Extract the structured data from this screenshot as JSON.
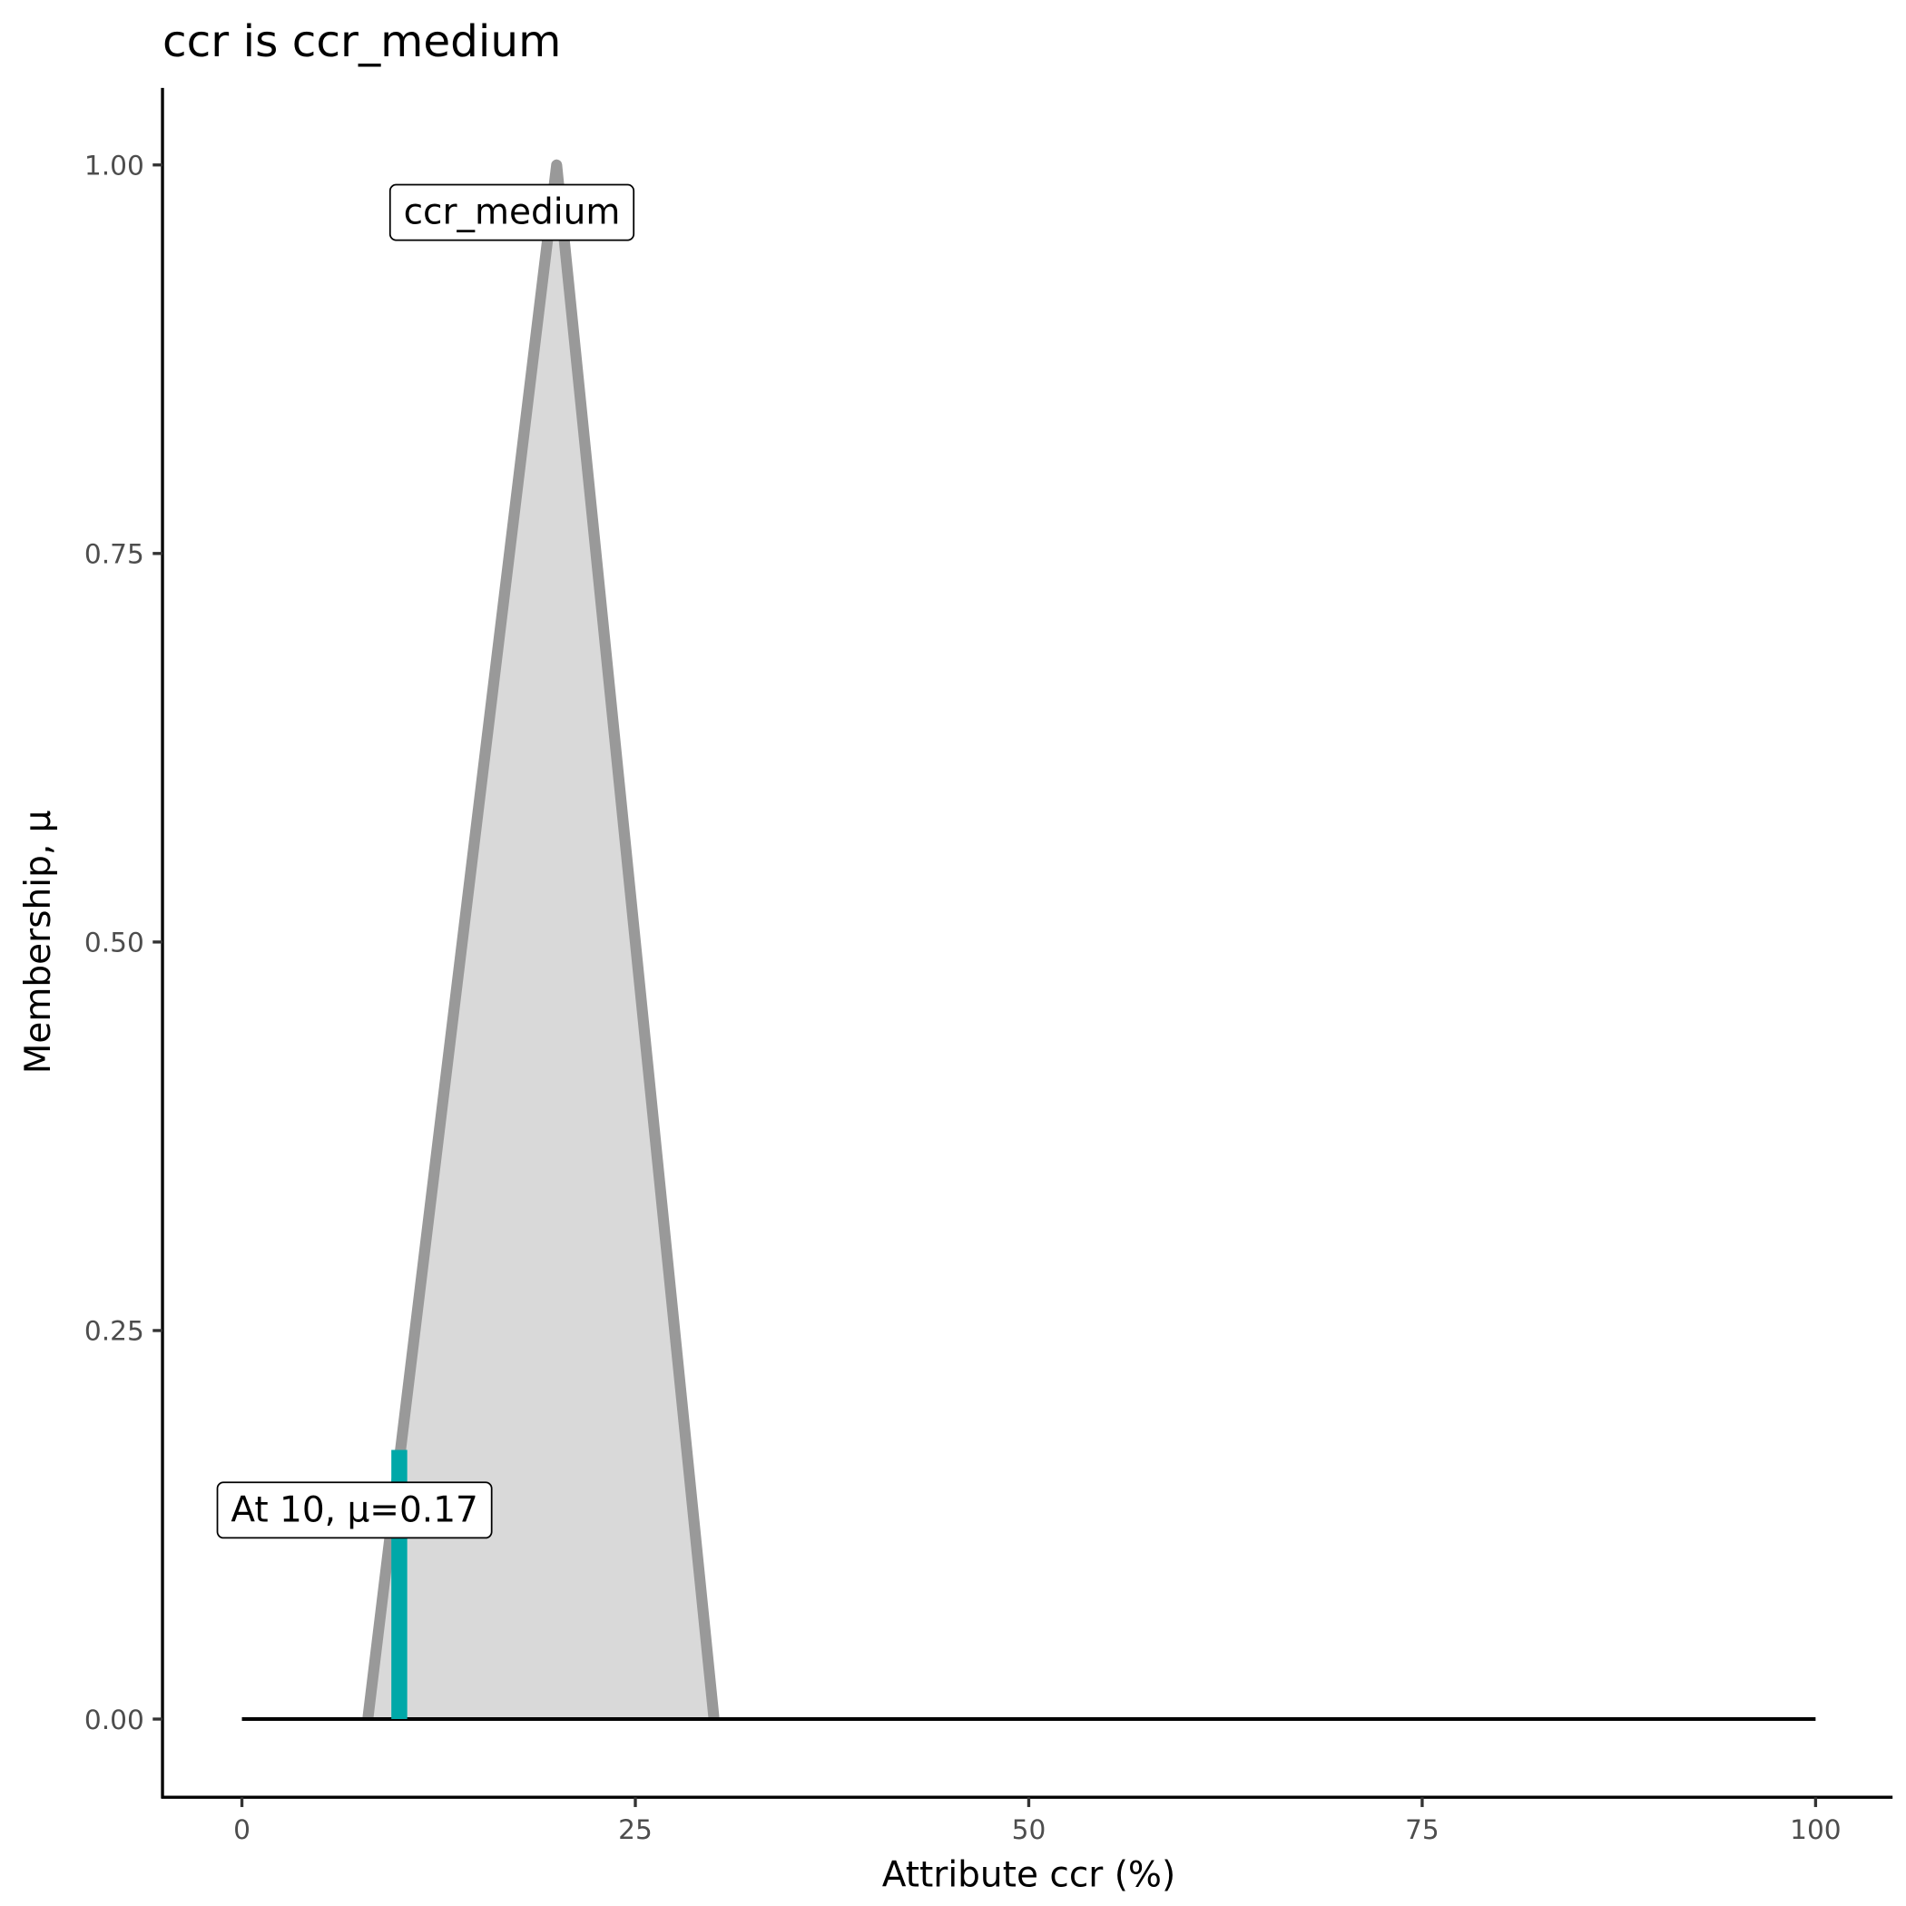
{
  "chart_data": {
    "type": "area",
    "title": "ccr is ccr_medium",
    "xlabel": "Attribute ccr (%)",
    "ylabel": "Membership, μ",
    "xlim": [
      -5,
      105
    ],
    "ylim": [
      -0.05,
      1.05
    ],
    "x_ticks": [
      0,
      25,
      50,
      75,
      100
    ],
    "x_tick_labels": [
      "0",
      "25",
      "50",
      "75",
      "100"
    ],
    "y_ticks": [
      0,
      0.25,
      0.5,
      0.75,
      1
    ],
    "y_tick_labels": [
      "0.00",
      "0.25",
      "0.50",
      "0.75",
      "1.00"
    ],
    "grid": false,
    "series": [
      {
        "name": "ccr_medium",
        "x": [
          8,
          20,
          30
        ],
        "y": [
          0,
          1,
          0
        ],
        "fill": "#d9d9d9",
        "stroke": "#999999"
      }
    ],
    "baseline": {
      "x": [
        0,
        100
      ],
      "y": [
        0,
        0
      ]
    },
    "marker": {
      "x": 10,
      "mu": 0.17,
      "color": "#00a8a8"
    },
    "annotations": [
      {
        "text": "ccr_medium",
        "x": 17,
        "y": 0.97
      },
      {
        "text": "At 10, μ=0.17",
        "x": 7,
        "y": 0.135
      }
    ]
  }
}
